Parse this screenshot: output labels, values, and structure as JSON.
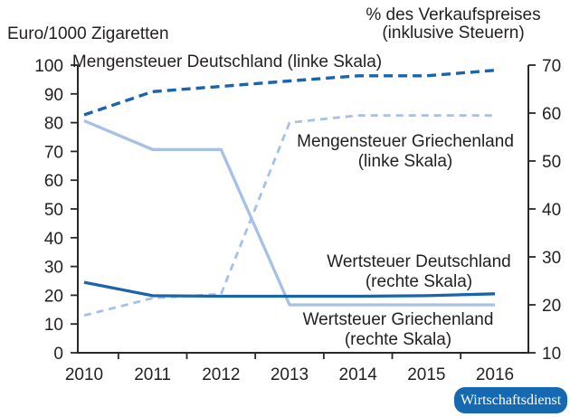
{
  "chart_data": {
    "type": "line",
    "left_axis": {
      "title": "Euro/1000 Zigaretten",
      "min": 0,
      "max": 100,
      "ticks": [
        0,
        10,
        20,
        30,
        40,
        50,
        60,
        70,
        80,
        90,
        100
      ]
    },
    "right_axis": {
      "title_line1": "% des Verkaufspreises",
      "title_line2": "(inklusive Steuern)",
      "min": 10,
      "max": 70,
      "ticks": [
        10,
        20,
        30,
        40,
        50,
        60,
        70
      ]
    },
    "x": {
      "categories": [
        "2010",
        "2011",
        "2012",
        "2013",
        "2014",
        "2015",
        "2016"
      ]
    },
    "series": [
      {
        "name": "Mengensteuer Griechenland (linke Skala)",
        "slug": "mengensteuer-griechenland",
        "axis": "left",
        "style": "dashed",
        "color": "light",
        "values": [
          13,
          19,
          20.4,
          80,
          82.5,
          82.5,
          82.5
        ]
      },
      {
        "name": "Wertsteuer Griechenland (rechte Skala)",
        "slug": "wertsteuer-griechenland",
        "axis": "right",
        "style": "solid",
        "color": "light",
        "values": [
          58.4,
          52.4,
          52.4,
          20,
          20,
          20,
          20
        ]
      },
      {
        "name": "Mengensteuer Deutschland (linke Skala)",
        "slug": "mengensteuer-deutschland",
        "axis": "left",
        "style": "dashed",
        "color": "dark",
        "values": [
          82.7,
          90.8,
          92.6,
          94.5,
          96.3,
          96.3,
          98.2
        ]
      },
      {
        "name": "Wertsteuer Deutschland (rechte Skala)",
        "slug": "wertsteuer-deutschland",
        "axis": "right",
        "style": "solid",
        "color": "dark",
        "values": [
          24.7,
          21.9,
          21.8,
          21.8,
          21.8,
          21.9,
          22.3
        ]
      }
    ],
    "annotations": [
      {
        "lines": [
          "Mengensteuer Deutschland (linke Skala)"
        ]
      },
      {
        "lines": [
          "Mengensteuer Griechenland",
          "(linke Skala)"
        ]
      },
      {
        "lines": [
          "Wertsteuer Deutschland",
          "(rechte Skala)"
        ]
      },
      {
        "lines": [
          "Wertsteuer Griechenland",
          "(rechte Skala)"
        ]
      }
    ],
    "legend_position": "inline-annotations",
    "grid": false,
    "colors": {
      "dark_blue": "#1A63AE",
      "light_blue": "#A6C1E5",
      "axis": "#2B2728",
      "text": "#231F20",
      "badge_bg": "#1569B3",
      "badge_text": "#FFFFFF"
    }
  },
  "source_badge": {
    "label": "Wirtschaftsdienst"
  }
}
